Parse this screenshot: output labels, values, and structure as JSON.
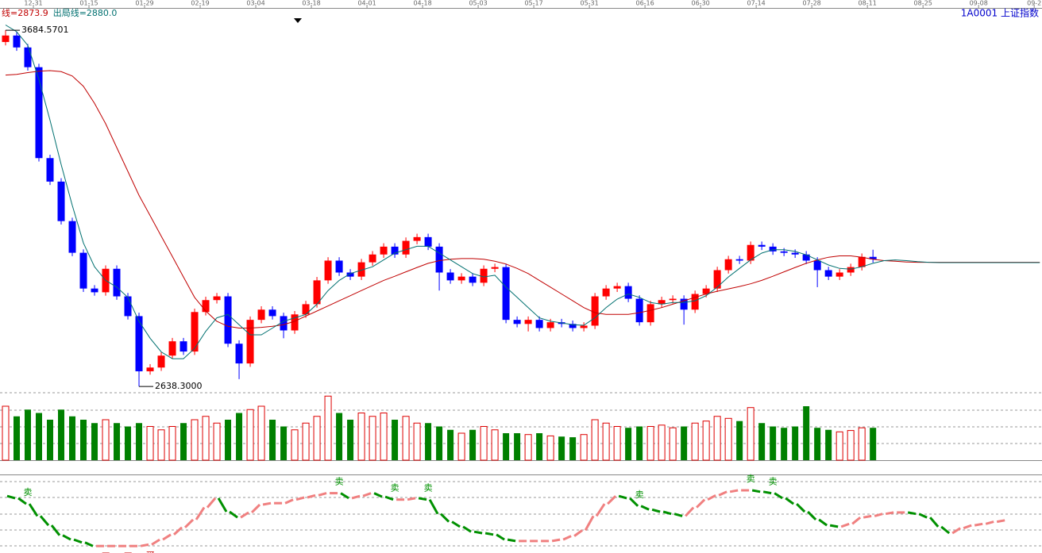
{
  "chart_data": [
    {
      "type": "candlestick",
      "title": "1A0001 上证指数",
      "xlim": [
        -0.5,
        93.2
      ],
      "xticks": [
        {
          "value": 2.5,
          "label": "12-31"
        },
        {
          "value": 7.5,
          "label": "01-15"
        },
        {
          "value": 12.5,
          "label": "01-29"
        },
        {
          "value": 17.5,
          "label": "02-19"
        },
        {
          "value": 22.5,
          "label": "03-04"
        },
        {
          "value": 27.5,
          "label": "03-18"
        },
        {
          "value": 32.5,
          "label": "04-01"
        },
        {
          "value": 37.5,
          "label": "04-18"
        },
        {
          "value": 42.5,
          "label": "05-03"
        },
        {
          "value": 47.5,
          "label": "05-17"
        },
        {
          "value": 52.5,
          "label": "05-31"
        },
        {
          "value": 57.5,
          "label": "06-16"
        },
        {
          "value": 62.5,
          "label": "06-30"
        },
        {
          "value": 67.5,
          "label": "07-14"
        },
        {
          "value": 72.5,
          "label": "07-28"
        },
        {
          "value": 77.5,
          "label": "08-11"
        },
        {
          "value": 82.5,
          "label": "08-25"
        },
        {
          "value": 87.5,
          "label": "09-08"
        },
        {
          "value": 92.5,
          "label": "09-2"
        }
      ],
      "ylim": [
        2620,
        3750
      ],
      "up_color": "#ff0000",
      "down_color": "#0000ff",
      "open": [
        3650,
        3669,
        3634,
        3576,
        3309,
        3240,
        3124,
        3031,
        2926,
        2915,
        2984,
        2903,
        2845,
        2683,
        2694,
        2729,
        2771,
        2741,
        2857,
        2892,
        2903,
        2764,
        2706,
        2834,
        2864,
        2845,
        2803,
        2850,
        2880,
        2950,
        3008,
        2973,
        2961,
        3003,
        3026,
        3049,
        3026,
        3066,
        3077,
        3049,
        2973,
        2950,
        2961,
        2943,
        2984,
        2989,
        2834,
        2822,
        2834,
        2810,
        2827,
        2822,
        2810,
        2817,
        2903,
        2926,
        2933,
        2896,
        2827,
        2880,
        2892,
        2896,
        2864,
        2910,
        2926,
        2980,
        3012,
        3008,
        3054,
        3049,
        3035,
        3031,
        3026,
        3008,
        2980,
        2961,
        2973,
        2989,
        3019
      ],
      "high": [
        3684.5701,
        3679,
        3644,
        3586,
        3319,
        3250,
        3134,
        3041,
        2936,
        2994,
        2994,
        2913,
        2855,
        2704,
        2739,
        2781,
        2781,
        2867,
        2902,
        2913,
        2913,
        2774,
        2844,
        2874,
        2874,
        2855,
        2860,
        2890,
        2960,
        3018,
        3018,
        2983,
        3013,
        3036,
        3059,
        3059,
        3076,
        3087,
        3087,
        3059,
        2983,
        2971,
        2971,
        2994,
        2999,
        2999,
        2844,
        2844,
        2844,
        2837,
        2837,
        2832,
        2827,
        2913,
        2936,
        2943,
        2943,
        2906,
        2890,
        2902,
        2906,
        2906,
        2920,
        2936,
        2990,
        3022,
        3022,
        3064,
        3064,
        3059,
        3045,
        3041,
        3036,
        3018,
        2990,
        2983,
        2999,
        3029,
        3040
      ],
      "low": [
        3640,
        3624,
        3566,
        3299,
        3230,
        3114,
        3021,
        2916,
        2905,
        2905,
        2893,
        2835,
        2638.3,
        2673,
        2684,
        2719,
        2731,
        2731,
        2847,
        2882,
        2754,
        2660,
        2696,
        2824,
        2835,
        2780,
        2793,
        2840,
        2870,
        2940,
        2963,
        2951,
        2951,
        2993,
        3016,
        3016,
        3016,
        3056,
        3039,
        2920,
        2940,
        2940,
        2933,
        2933,
        2974,
        2824,
        2812,
        2800,
        2800,
        2800,
        2812,
        2800,
        2800,
        2807,
        2893,
        2916,
        2886,
        2817,
        2817,
        2870,
        2882,
        2820,
        2854,
        2900,
        2916,
        2970,
        2998,
        2998,
        3039,
        3025,
        3021,
        3016,
        2998,
        2930,
        2951,
        2951,
        2963,
        2979,
        3002
      ],
      "close": [
        3669,
        3634,
        3576,
        3309,
        3240,
        3124,
        3031,
        2926,
        2915,
        2984,
        2903,
        2845,
        2683,
        2694,
        2729,
        2771,
        2741,
        2857,
        2892,
        2903,
        2764,
        2706,
        2834,
        2864,
        2845,
        2803,
        2850,
        2880,
        2950,
        3008,
        2973,
        2961,
        3003,
        3026,
        3049,
        3026,
        3066,
        3077,
        3049,
        2973,
        2950,
        2961,
        2943,
        2984,
        2989,
        2834,
        2822,
        2834,
        2810,
        2827,
        2822,
        2810,
        2817,
        2903,
        2926,
        2933,
        2896,
        2827,
        2880,
        2892,
        2896,
        2864,
        2910,
        2926,
        2980,
        3012,
        3008,
        3054,
        3049,
        3035,
        3031,
        3026,
        3008,
        2980,
        2961,
        2973,
        2989,
        3019,
        3012
      ],
      "series": [
        {
          "name": "线=2873.9",
          "color": "#c00000",
          "values": [
            3553,
            3555,
            3560,
            3564,
            3566,
            3563,
            3550,
            3520,
            3470,
            3410,
            3340,
            3270,
            3200,
            3140,
            3080,
            3020,
            2960,
            2900,
            2860,
            2830,
            2815,
            2810,
            2810,
            2812,
            2815,
            2820,
            2830,
            2845,
            2860,
            2875,
            2890,
            2905,
            2920,
            2935,
            2950,
            2962,
            2975,
            2988,
            3000,
            3008,
            3012,
            3014,
            3014,
            3012,
            3006,
            2998,
            2985,
            2970,
            2950,
            2930,
            2910,
            2890,
            2870,
            2855,
            2850,
            2850,
            2850,
            2855,
            2862,
            2870,
            2880,
            2890,
            2900,
            2910,
            2918,
            2925,
            2932,
            2940,
            2950,
            2962,
            2975,
            2988,
            3000,
            3010,
            3018,
            3022,
            3022,
            3018,
            3012,
            3008,
            3006,
            3004,
            3003,
            3003,
            3003,
            3003,
            3003,
            3003,
            3003,
            3003,
            3003,
            3003,
            3003,
            3003
          ]
        },
        {
          "name": "出局线=2880.0",
          "color": "#007070",
          "values": [
            3700,
            3680,
            3640,
            3540,
            3420,
            3290,
            3170,
            3060,
            2990,
            2950,
            2930,
            2900,
            2830,
            2780,
            2740,
            2720,
            2720,
            2750,
            2800,
            2840,
            2850,
            2820,
            2790,
            2790,
            2810,
            2830,
            2840,
            2850,
            2880,
            2920,
            2950,
            2970,
            2980,
            2990,
            3010,
            3030,
            3040,
            3050,
            3050,
            3030,
            3010,
            2990,
            2970,
            2960,
            2965,
            2930,
            2900,
            2870,
            2840,
            2830,
            2825,
            2820,
            2818,
            2840,
            2870,
            2895,
            2910,
            2900,
            2885,
            2880,
            2885,
            2885,
            2890,
            2905,
            2930,
            2960,
            2985,
            3010,
            3030,
            3040,
            3040,
            3035,
            3025,
            3010,
            2995,
            2985,
            2983,
            2990,
            3000,
            3008,
            3010,
            3008,
            3005,
            3003,
            3002,
            3002,
            3002,
            3002,
            3002,
            3002,
            3002,
            3002,
            3002,
            3002
          ]
        }
      ],
      "annotations": [
        {
          "index": 0,
          "value": 3684.5701,
          "label": "3684.5701"
        },
        {
          "index": 12,
          "value": 2638.3,
          "label": "2638.3000"
        }
      ]
    },
    {
      "type": "bar",
      "ylim": [
        0,
        100
      ],
      "up_color": "#dd0000",
      "down_color": "#008000",
      "values": [
        80,
        65,
        75,
        70,
        60,
        75,
        65,
        60,
        55,
        60,
        55,
        50,
        55,
        50,
        45,
        50,
        55,
        60,
        65,
        55,
        60,
        70,
        75,
        80,
        60,
        50,
        45,
        55,
        65,
        95,
        70,
        60,
        70,
        65,
        70,
        60,
        65,
        55,
        55,
        50,
        45,
        40,
        45,
        50,
        45,
        40,
        40,
        38,
        40,
        36,
        35,
        34,
        38,
        60,
        55,
        50,
        48,
        50,
        50,
        52,
        48,
        50,
        55,
        58,
        65,
        62,
        58,
        78,
        55,
        50,
        48,
        50,
        80,
        48,
        45,
        42,
        44,
        48,
        48
      ]
    },
    {
      "type": "line",
      "ylim": [
        0,
        100
      ],
      "up_color": "#f08080",
      "down_color": "#009000",
      "values": [
        72,
        69,
        61,
        44,
        31,
        17,
        11,
        7,
        2,
        2,
        2,
        2,
        2,
        4,
        11,
        18,
        28,
        39,
        56,
        69,
        50,
        42,
        49,
        60,
        62,
        62,
        67,
        70,
        73,
        76,
        76,
        69,
        72,
        76,
        71,
        67,
        67,
        69,
        67,
        47,
        36,
        29,
        22,
        20,
        18,
        11,
        9,
        9,
        9,
        9,
        11,
        16,
        24,
        44,
        61,
        72,
        69,
        58,
        53,
        50,
        47,
        44,
        56,
        67,
        73,
        78,
        80,
        80,
        78,
        76,
        69,
        61,
        50,
        39,
        31,
        29,
        33,
        42,
        44,
        47,
        49,
        49,
        47,
        42,
        29,
        20,
        27,
        31,
        33,
        36,
        38
      ],
      "signals": [
        {
          "index": 2,
          "label": "卖"
        },
        {
          "index": 30,
          "label": "卖"
        },
        {
          "index": 35,
          "label": "卖"
        },
        {
          "index": 38,
          "label": "卖"
        },
        {
          "index": 57,
          "label": "卖"
        },
        {
          "index": 67,
          "label": "卖"
        },
        {
          "index": 69,
          "label": "卖"
        },
        {
          "index": 9,
          "label": "买"
        },
        {
          "index": 11,
          "label": "买"
        },
        {
          "index": 13,
          "label": "买"
        }
      ]
    }
  ]
}
